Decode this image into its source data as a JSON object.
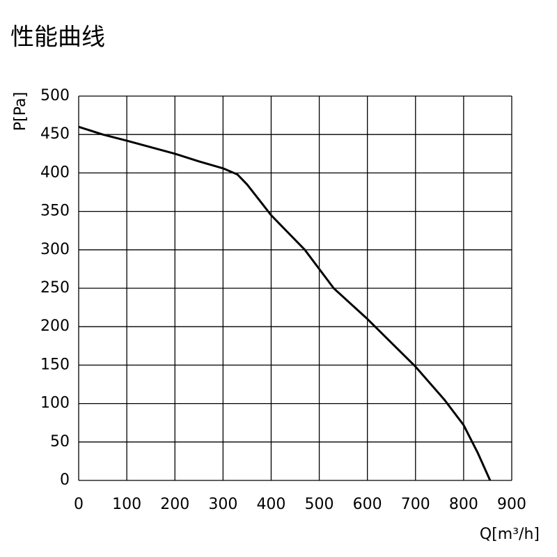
{
  "chart_data": {
    "type": "line",
    "title": "性能曲线",
    "ylabel": "P[Pa]",
    "xlabel": "Q[m³/h]",
    "x": [
      0,
      50,
      100,
      200,
      250,
      300,
      330,
      350,
      400,
      470,
      530,
      600,
      700,
      760,
      800,
      830,
      855
    ],
    "series": [
      {
        "color": "#000000",
        "values": [
          460,
          450,
          442,
          425,
          415,
          406,
          398,
          385,
          345,
          300,
          250,
          210,
          148,
          105,
          72,
          35,
          0
        ]
      }
    ],
    "xlim": [
      0,
      900
    ],
    "xticks": [
      0,
      100,
      200,
      300,
      400,
      500,
      600,
      700,
      800,
      900
    ],
    "ylim": [
      0,
      500
    ],
    "yticks": [
      0,
      50,
      100,
      150,
      200,
      250,
      300,
      350,
      400,
      450,
      500
    ],
    "grid": true
  }
}
